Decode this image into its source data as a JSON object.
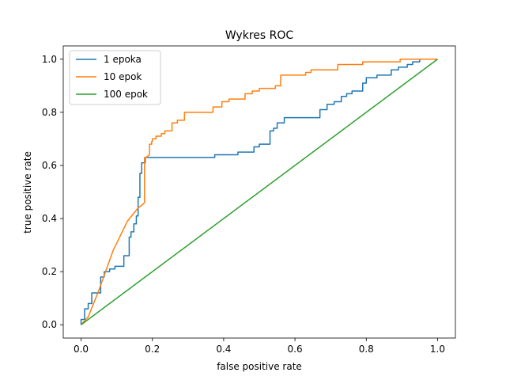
{
  "chart_data": {
    "type": "line",
    "title": "Wykres ROC",
    "xlabel": "false positive rate",
    "ylabel": "true positive rate",
    "xlim": [
      -0.05,
      1.05
    ],
    "ylim": [
      -0.05,
      1.05
    ],
    "xticks": [
      "0.0",
      "0.2",
      "0.4",
      "0.6",
      "0.8",
      "1.0"
    ],
    "yticks": [
      "0.0",
      "0.2",
      "0.4",
      "0.6",
      "0.8",
      "1.0"
    ],
    "grid": false,
    "legend_position": "top-left",
    "series": [
      {
        "name": "1 epoka",
        "color": "#1f77b4",
        "x": [
          0.0,
          0.0,
          0.01,
          0.01,
          0.02,
          0.02,
          0.03,
          0.03,
          0.045,
          0.045,
          0.055,
          0.055,
          0.065,
          0.065,
          0.08,
          0.08,
          0.095,
          0.095,
          0.12,
          0.12,
          0.135,
          0.135,
          0.14,
          0.14,
          0.148,
          0.148,
          0.155,
          0.155,
          0.16,
          0.16,
          0.165,
          0.165,
          0.17,
          0.17,
          0.18,
          0.18,
          0.19,
          0.19,
          0.375,
          0.375,
          0.44,
          0.44,
          0.485,
          0.485,
          0.5,
          0.5,
          0.53,
          0.53,
          0.54,
          0.54,
          0.55,
          0.55,
          0.57,
          0.57,
          0.59,
          0.59,
          0.67,
          0.67,
          0.69,
          0.69,
          0.71,
          0.71,
          0.73,
          0.73,
          0.745,
          0.745,
          0.76,
          0.76,
          0.79,
          0.79,
          0.8,
          0.8,
          0.83,
          0.83,
          0.87,
          0.87,
          0.89,
          0.89,
          0.915,
          0.915,
          0.93,
          0.93,
          0.95,
          0.95,
          1.0
        ],
        "y": [
          0.0,
          0.02,
          0.02,
          0.06,
          0.06,
          0.08,
          0.08,
          0.12,
          0.12,
          0.12,
          0.12,
          0.18,
          0.18,
          0.2,
          0.2,
          0.21,
          0.21,
          0.22,
          0.22,
          0.26,
          0.26,
          0.33,
          0.33,
          0.35,
          0.35,
          0.38,
          0.38,
          0.41,
          0.41,
          0.48,
          0.48,
          0.57,
          0.57,
          0.61,
          0.61,
          0.63,
          0.63,
          0.63,
          0.63,
          0.64,
          0.64,
          0.65,
          0.65,
          0.67,
          0.67,
          0.68,
          0.68,
          0.73,
          0.73,
          0.74,
          0.74,
          0.76,
          0.76,
          0.78,
          0.78,
          0.78,
          0.78,
          0.81,
          0.81,
          0.83,
          0.83,
          0.84,
          0.84,
          0.86,
          0.86,
          0.87,
          0.87,
          0.88,
          0.88,
          0.91,
          0.91,
          0.93,
          0.93,
          0.94,
          0.94,
          0.96,
          0.96,
          0.97,
          0.97,
          0.98,
          0.98,
          0.99,
          0.99,
          1.0,
          1.0
        ]
      },
      {
        "name": "10 epok",
        "color": "#ff7f0e",
        "x": [
          0.0,
          0.02,
          0.05,
          0.09,
          0.13,
          0.16,
          0.17,
          0.17,
          0.178,
          0.178,
          0.182,
          0.182,
          0.192,
          0.192,
          0.198,
          0.198,
          0.2,
          0.2,
          0.21,
          0.21,
          0.225,
          0.225,
          0.235,
          0.235,
          0.255,
          0.255,
          0.27,
          0.27,
          0.29,
          0.29,
          0.37,
          0.37,
          0.395,
          0.395,
          0.415,
          0.415,
          0.46,
          0.46,
          0.48,
          0.48,
          0.5,
          0.5,
          0.545,
          0.545,
          0.56,
          0.56,
          0.63,
          0.63,
          0.645,
          0.645,
          0.66,
          0.66,
          0.69,
          0.69,
          0.72,
          0.72,
          0.79,
          0.79,
          0.895,
          0.895,
          0.975,
          0.975,
          1.0
        ],
        "y": [
          0.0,
          0.03,
          0.13,
          0.28,
          0.39,
          0.44,
          0.45,
          0.45,
          0.46,
          0.63,
          0.63,
          0.63,
          0.64,
          0.68,
          0.68,
          0.69,
          0.69,
          0.7,
          0.7,
          0.71,
          0.71,
          0.72,
          0.72,
          0.73,
          0.73,
          0.76,
          0.76,
          0.77,
          0.77,
          0.8,
          0.8,
          0.82,
          0.82,
          0.84,
          0.84,
          0.85,
          0.85,
          0.87,
          0.87,
          0.88,
          0.88,
          0.89,
          0.89,
          0.9,
          0.9,
          0.94,
          0.94,
          0.95,
          0.95,
          0.96,
          0.96,
          0.96,
          0.96,
          0.96,
          0.96,
          0.98,
          0.98,
          0.99,
          0.99,
          1.0,
          1.0,
          1.0,
          1.0
        ]
      },
      {
        "name": "100 epok",
        "color": "#2ca02c",
        "x": [
          0.0,
          1.0
        ],
        "y": [
          0.0,
          1.0
        ]
      }
    ]
  }
}
